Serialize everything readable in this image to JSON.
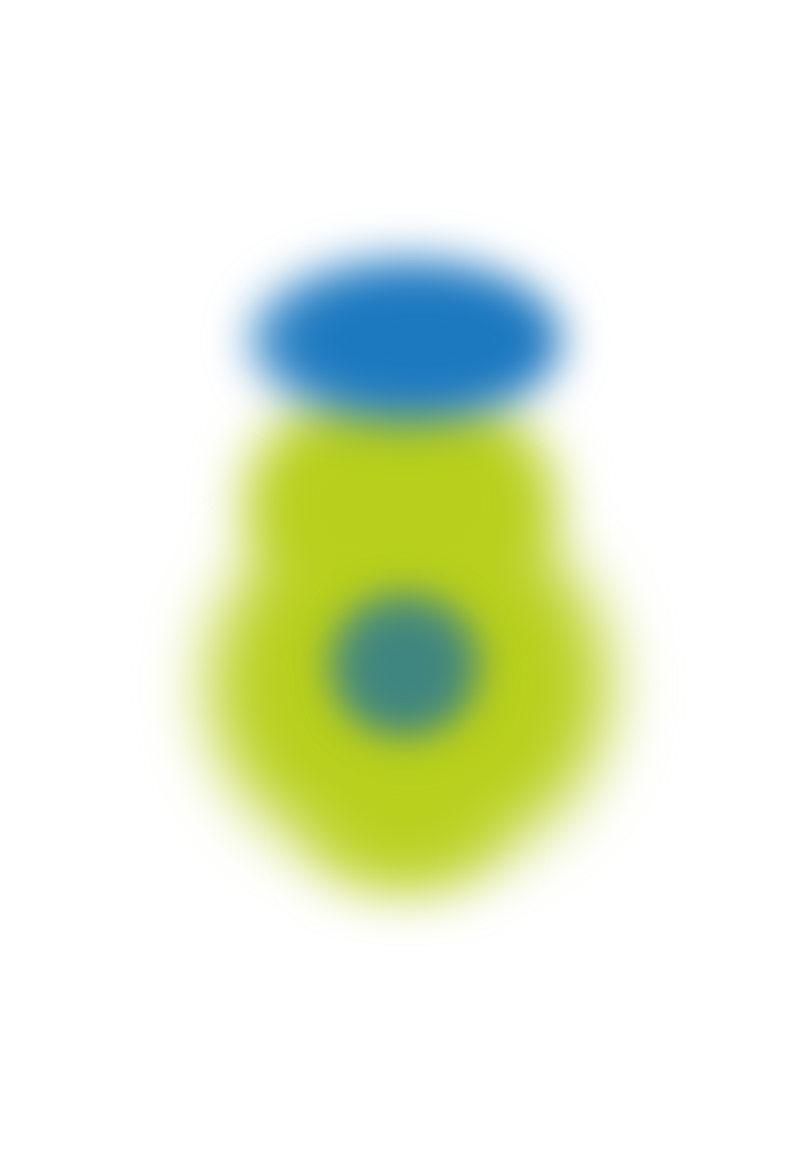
{
  "image": {
    "description_colors": {
      "background": "#ffffff",
      "green": "#b8cf1c",
      "blue": "#1c78bf",
      "teal": "#3f8580"
    }
  }
}
